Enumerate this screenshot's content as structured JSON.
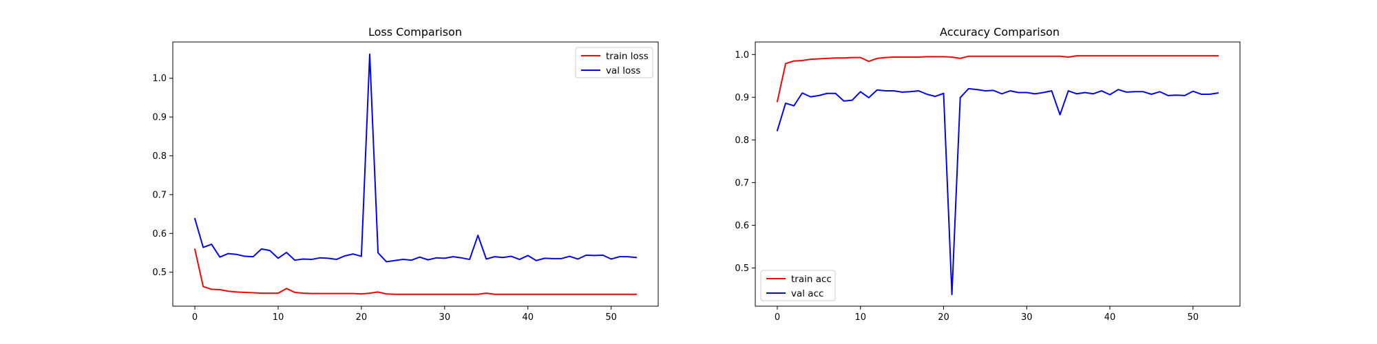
{
  "chart_data": [
    {
      "type": "line",
      "title": "Loss Comparison",
      "xlabel": "",
      "ylabel": "",
      "xlim": [
        -2.65,
        55.65
      ],
      "ylim": [
        0.4125,
        1.0935
      ],
      "xticks": [
        0,
        10,
        20,
        30,
        40,
        50
      ],
      "yticks": [
        0.5,
        0.6,
        0.7,
        0.8,
        0.9,
        1.0
      ],
      "ytick_labels": [
        "0.5",
        "0.6",
        "0.7",
        "0.8",
        "0.9",
        "1.0"
      ],
      "grid": false,
      "legend": "upper right",
      "x": [
        0,
        1,
        2,
        3,
        4,
        5,
        6,
        7,
        8,
        9,
        10,
        11,
        12,
        13,
        14,
        15,
        16,
        17,
        18,
        19,
        20,
        21,
        22,
        23,
        24,
        25,
        26,
        27,
        28,
        29,
        30,
        31,
        32,
        33,
        34,
        35,
        36,
        37,
        38,
        39,
        40,
        41,
        42,
        43,
        44,
        45,
        46,
        47,
        48,
        49,
        50,
        51,
        52,
        53
      ],
      "series": [
        {
          "name": "train loss",
          "color": "#ff0000",
          "values": [
            0.559,
            0.463,
            0.456,
            0.455,
            0.451,
            0.449,
            0.448,
            0.447,
            0.446,
            0.446,
            0.446,
            0.458,
            0.448,
            0.446,
            0.445,
            0.445,
            0.445,
            0.445,
            0.445,
            0.445,
            0.444,
            0.446,
            0.449,
            0.444,
            0.443,
            0.443,
            0.443,
            0.443,
            0.443,
            0.443,
            0.443,
            0.443,
            0.443,
            0.443,
            0.443,
            0.446,
            0.443,
            0.443,
            0.443,
            0.443,
            0.443,
            0.443,
            0.443,
            0.443,
            0.443,
            0.443,
            0.443,
            0.443,
            0.443,
            0.443,
            0.443,
            0.443,
            0.443,
            0.443
          ]
        },
        {
          "name": "val loss",
          "color": "#0000ff",
          "values": [
            0.638,
            0.564,
            0.572,
            0.539,
            0.548,
            0.546,
            0.541,
            0.54,
            0.56,
            0.556,
            0.536,
            0.551,
            0.531,
            0.534,
            0.533,
            0.537,
            0.536,
            0.533,
            0.542,
            0.547,
            0.541,
            1.062,
            0.55,
            0.527,
            0.53,
            0.533,
            0.531,
            0.539,
            0.532,
            0.537,
            0.536,
            0.54,
            0.537,
            0.533,
            0.595,
            0.534,
            0.54,
            0.538,
            0.541,
            0.533,
            0.543,
            0.53,
            0.536,
            0.535,
            0.535,
            0.541,
            0.534,
            0.544,
            0.543,
            0.544,
            0.534,
            0.54,
            0.54,
            0.538
          ]
        }
      ]
    },
    {
      "type": "line",
      "title": "Accuracy Comparison",
      "xlabel": "",
      "ylabel": "",
      "xlim": [
        -2.65,
        55.65
      ],
      "ylim": [
        0.4105,
        1.0295
      ],
      "xticks": [
        0,
        10,
        20,
        30,
        40,
        50
      ],
      "yticks": [
        0.5,
        0.6,
        0.7,
        0.8,
        0.9,
        1.0
      ],
      "ytick_labels": [
        "0.5",
        "0.6",
        "0.7",
        "0.8",
        "0.9",
        "1.0"
      ],
      "grid": false,
      "legend": "lower left",
      "x": [
        0,
        1,
        2,
        3,
        4,
        5,
        6,
        7,
        8,
        9,
        10,
        11,
        12,
        13,
        14,
        15,
        16,
        17,
        18,
        19,
        20,
        21,
        22,
        23,
        24,
        25,
        26,
        27,
        28,
        29,
        30,
        31,
        32,
        33,
        34,
        35,
        36,
        37,
        38,
        39,
        40,
        41,
        42,
        43,
        44,
        45,
        46,
        47,
        48,
        49,
        50,
        51,
        52,
        53
      ],
      "series": [
        {
          "name": "train acc",
          "color": "#ff0000",
          "values": [
            0.89,
            0.979,
            0.985,
            0.986,
            0.989,
            0.99,
            0.991,
            0.992,
            0.992,
            0.993,
            0.993,
            0.984,
            0.991,
            0.993,
            0.994,
            0.994,
            0.994,
            0.994,
            0.995,
            0.995,
            0.995,
            0.994,
            0.991,
            0.996,
            0.996,
            0.996,
            0.996,
            0.996,
            0.996,
            0.996,
            0.996,
            0.996,
            0.996,
            0.996,
            0.996,
            0.994,
            0.997,
            0.997,
            0.997,
            0.997,
            0.997,
            0.997,
            0.997,
            0.997,
            0.997,
            0.997,
            0.997,
            0.997,
            0.997,
            0.997,
            0.997,
            0.997,
            0.997,
            0.997
          ]
        },
        {
          "name": "val acc",
          "color": "#0000ff",
          "values": [
            0.822,
            0.886,
            0.88,
            0.91,
            0.901,
            0.904,
            0.909,
            0.909,
            0.891,
            0.893,
            0.913,
            0.899,
            0.917,
            0.915,
            0.915,
            0.912,
            0.913,
            0.915,
            0.907,
            0.902,
            0.909,
            0.438,
            0.899,
            0.92,
            0.918,
            0.915,
            0.916,
            0.908,
            0.915,
            0.911,
            0.911,
            0.908,
            0.911,
            0.915,
            0.859,
            0.915,
            0.908,
            0.911,
            0.908,
            0.915,
            0.906,
            0.918,
            0.912,
            0.913,
            0.913,
            0.907,
            0.913,
            0.904,
            0.905,
            0.904,
            0.914,
            0.907,
            0.907,
            0.91
          ]
        }
      ]
    }
  ]
}
